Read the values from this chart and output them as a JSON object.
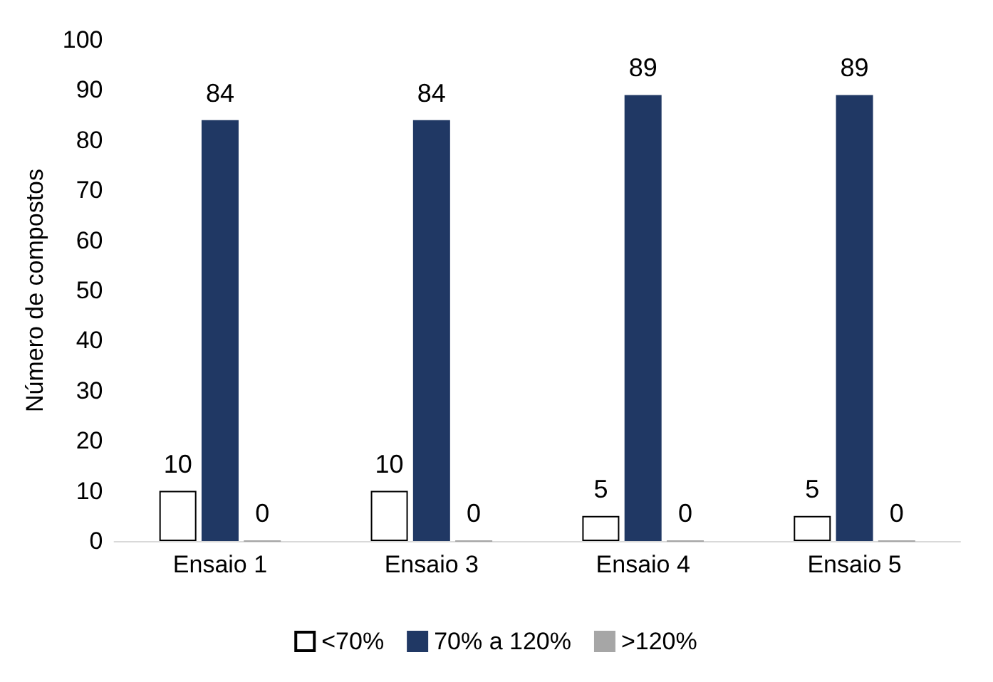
{
  "chart_data": {
    "type": "bar",
    "ylabel": "Número de compostos",
    "categories": [
      "Ensaio 1",
      "Ensaio 3",
      "Ensaio 4",
      "Ensaio 5"
    ],
    "series": [
      {
        "name": "<70%",
        "color": "#ffffff",
        "values": [
          10,
          10,
          5,
          5
        ]
      },
      {
        "name": "70% a 120%",
        "color": "#203864",
        "values": [
          84,
          84,
          89,
          89
        ]
      },
      {
        "name": ">120%",
        "color": "#a6a6a6",
        "values": [
          0,
          0,
          0,
          0
        ]
      }
    ],
    "ylim": [
      0,
      100
    ],
    "yticks": [
      0,
      10,
      20,
      30,
      40,
      50,
      60,
      70,
      80,
      90,
      100
    ],
    "grid": false,
    "legend": "bottom",
    "data_labels": true
  }
}
